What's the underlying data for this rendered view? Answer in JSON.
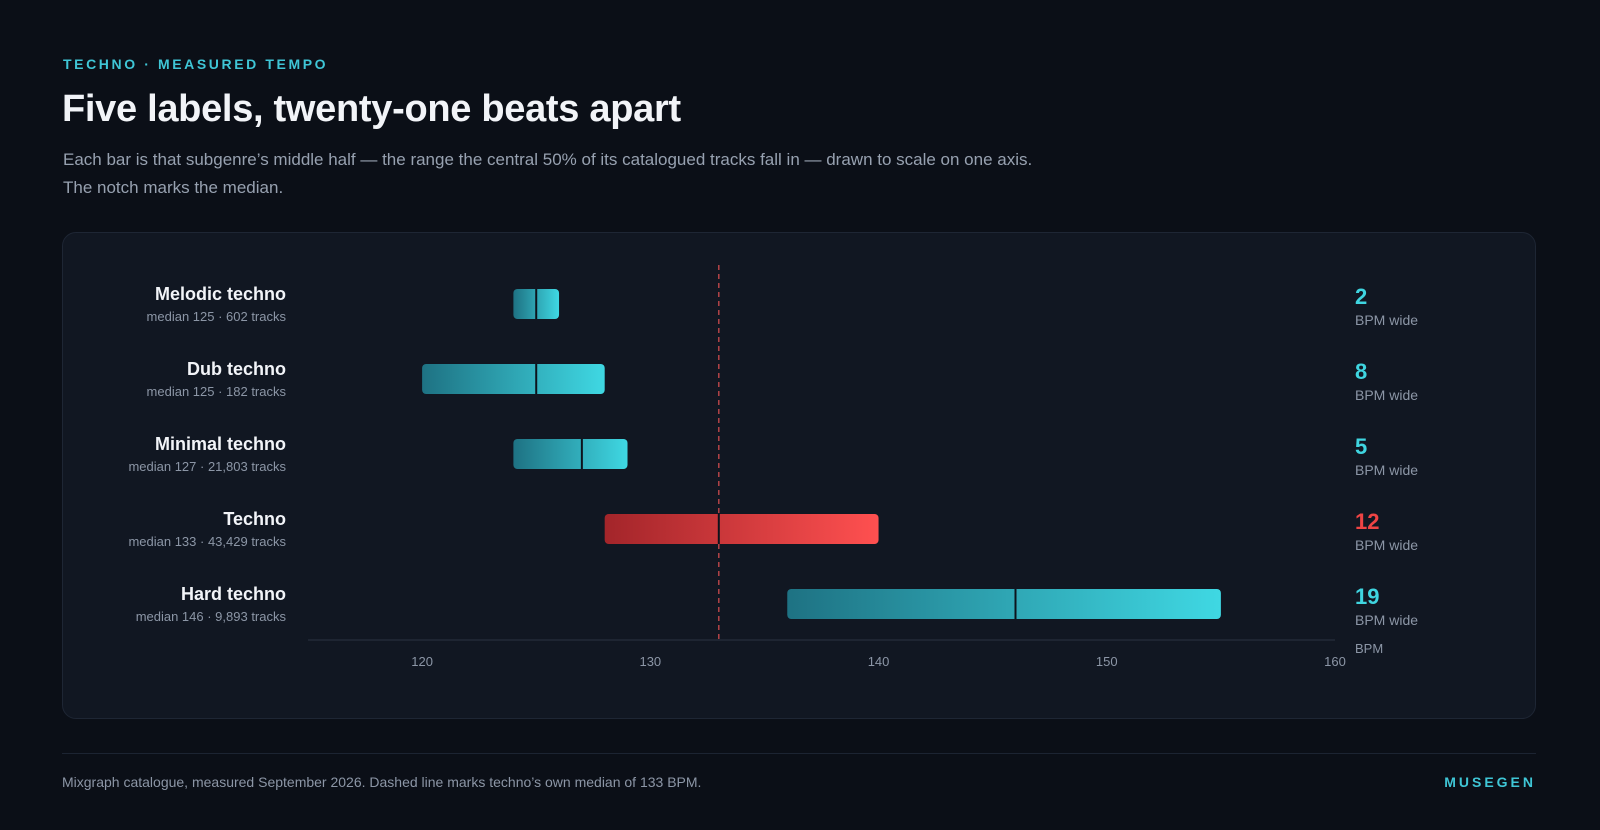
{
  "header": {
    "eyebrow": "TECHNO · MEASURED TEMPO",
    "title": "Five labels, twenty-one beats apart",
    "subtitle_line1": "Each bar is that subgenre’s middle half — the range the central 50% of its catalogued tracks fall in — drawn to scale on one axis.",
    "subtitle_line2": "The notch marks the median."
  },
  "chart_data": {
    "type": "range-bar",
    "xlim": [
      115,
      160
    ],
    "xticks": [
      120,
      130,
      140,
      150,
      160
    ],
    "xlabel": "BPM",
    "reference_line": {
      "value": 133,
      "style": "dashed"
    },
    "width_unit": "BPM wide",
    "highlight_color": "#ef4444",
    "base_color": "#3fd5e0",
    "rows": [
      {
        "name": "Melodic techno",
        "meta": "median 125 · 602 tracks",
        "q1": 124,
        "median": 125,
        "q3": 126,
        "width": "2",
        "highlight": false
      },
      {
        "name": "Dub techno",
        "meta": "median 125 · 182 tracks",
        "q1": 120,
        "median": 125,
        "q3": 128,
        "width": "8",
        "highlight": false
      },
      {
        "name": "Minimal techno",
        "meta": "median 127 · 21,803 tracks",
        "q1": 124,
        "median": 127,
        "q3": 129,
        "width": "5",
        "highlight": false
      },
      {
        "name": "Techno",
        "meta": "median 133 · 43,429 tracks",
        "q1": 128,
        "median": 133,
        "q3": 140,
        "width": "12",
        "highlight": true
      },
      {
        "name": "Hard techno",
        "meta": "median 146 · 9,893 tracks",
        "q1": 136,
        "median": 146,
        "q3": 155,
        "width": "19",
        "highlight": false
      }
    ]
  },
  "footer": {
    "note": "Mixgraph catalogue, measured September 2026. Dashed line marks techno’s own median of 133 BPM.",
    "brand": "MUSEGEN"
  }
}
